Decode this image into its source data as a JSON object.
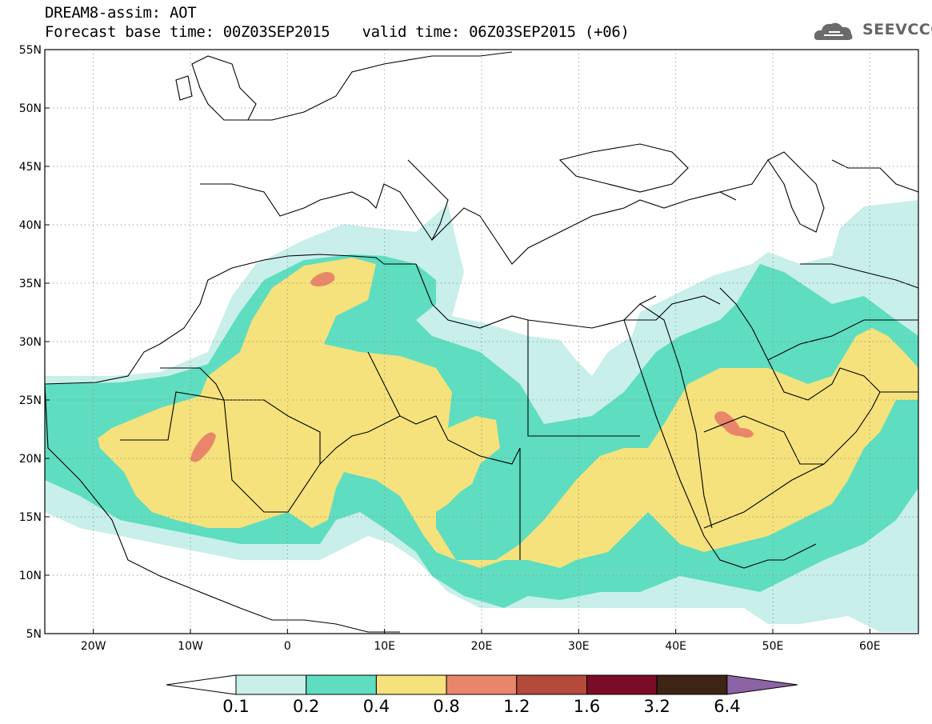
{
  "header": {
    "title": "DREAM8-assim: AOT",
    "base_time": "Forecast base time: 00Z03SEP2015",
    "valid_time": "valid time: 06Z03SEP2015 (+06)",
    "logo_text": "SEEVCCC"
  },
  "map": {
    "lat_labels": [
      "55N",
      "50N",
      "45N",
      "40N",
      "35N",
      "30N",
      "25N",
      "20N",
      "15N",
      "10N",
      "5N"
    ],
    "lon_labels": [
      "20W",
      "10W",
      "0",
      "10E",
      "20E",
      "30E",
      "40E",
      "50E",
      "60E"
    ],
    "field": "AOT"
  },
  "colorbar": {
    "labels": [
      "0.1",
      "0.2",
      "0.4",
      "0.8",
      "1.2",
      "1.6",
      "3.2",
      "6.4"
    ],
    "colors": [
      "#ffffff",
      "#c8efe9",
      "#5fddc0",
      "#f5e27c",
      "#e9866a",
      "#b34a3c",
      "#7a0c28",
      "#3d2415",
      "#8c64a6"
    ]
  }
}
